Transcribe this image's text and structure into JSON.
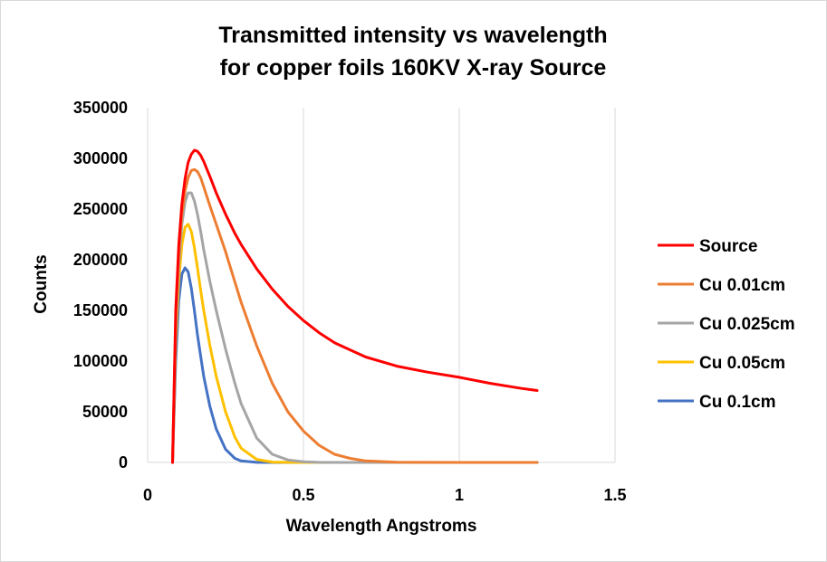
{
  "chart_data": {
    "type": "line",
    "title_lines": [
      "Transmitted intensity vs wavelength",
      "for copper foils 160KV X-ray Source"
    ],
    "xlabel": "Wavelength Angstroms",
    "ylabel": "Counts",
    "xlim": [
      0,
      1.5
    ],
    "ylim": [
      0,
      350000
    ],
    "xticks": [
      0,
      0.5,
      1,
      1.5
    ],
    "xtick_labels": [
      "0",
      "0.5",
      "1",
      "1.5"
    ],
    "yticks": [
      0,
      50000,
      100000,
      150000,
      200000,
      250000,
      300000,
      350000
    ],
    "ytick_labels": [
      "0",
      "50000",
      "100000",
      "150000",
      "200000",
      "250000",
      "300000",
      "350000"
    ],
    "grid": "vertical",
    "legend_position": "right",
    "series": [
      {
        "name": "Source",
        "color": "#ff0000",
        "x": [
          0.08,
          0.09,
          0.1,
          0.11,
          0.12,
          0.13,
          0.14,
          0.15,
          0.16,
          0.17,
          0.18,
          0.2,
          0.22,
          0.25,
          0.28,
          0.3,
          0.35,
          0.4,
          0.45,
          0.5,
          0.55,
          0.6,
          0.7,
          0.8,
          0.9,
          1.0,
          1.1,
          1.2,
          1.25
        ],
        "y": [
          0,
          150000,
          215000,
          255000,
          280000,
          296000,
          304000,
          308000,
          307000,
          303000,
          297000,
          282000,
          266000,
          245000,
          226000,
          215000,
          191000,
          171000,
          154000,
          140000,
          128000,
          118000,
          104000,
          95000,
          89000,
          84000,
          78000,
          73000,
          71000
        ]
      },
      {
        "name": "Cu 0.01cm",
        "color": "#ed7d31",
        "x": [
          0.08,
          0.09,
          0.1,
          0.11,
          0.12,
          0.13,
          0.14,
          0.15,
          0.16,
          0.17,
          0.18,
          0.2,
          0.22,
          0.25,
          0.28,
          0.3,
          0.35,
          0.4,
          0.45,
          0.5,
          0.55,
          0.6,
          0.65,
          0.7,
          0.8,
          0.9,
          1.0,
          1.25
        ],
        "y": [
          0,
          140000,
          205000,
          245000,
          268000,
          281000,
          288000,
          289000,
          287000,
          281000,
          272000,
          253000,
          235000,
          208000,
          178000,
          158000,
          115000,
          78000,
          50000,
          31000,
          17000,
          8000,
          4000,
          1500,
          300,
          50,
          0,
          0
        ]
      },
      {
        "name": "Cu 0.025cm",
        "color": "#a5a5a5",
        "x": [
          0.08,
          0.09,
          0.1,
          0.11,
          0.12,
          0.13,
          0.14,
          0.15,
          0.16,
          0.17,
          0.18,
          0.2,
          0.22,
          0.25,
          0.28,
          0.3,
          0.35,
          0.4,
          0.45,
          0.5,
          0.55,
          0.6,
          0.7,
          0.8,
          1.0,
          1.25
        ],
        "y": [
          0,
          130000,
          195000,
          235000,
          257000,
          266000,
          266000,
          258000,
          245000,
          228000,
          210000,
          178000,
          150000,
          112000,
          78000,
          58000,
          24000,
          8000,
          2500,
          600,
          100,
          0,
          0,
          0,
          0,
          0
        ]
      },
      {
        "name": "Cu 0.05cm",
        "color": "#ffc000",
        "x": [
          0.08,
          0.09,
          0.1,
          0.11,
          0.12,
          0.13,
          0.14,
          0.15,
          0.16,
          0.17,
          0.18,
          0.2,
          0.22,
          0.25,
          0.28,
          0.3,
          0.35,
          0.4,
          0.45,
          0.5,
          0.6,
          0.8,
          1.0,
          1.25
        ],
        "y": [
          0,
          120000,
          180000,
          215000,
          232000,
          235000,
          228000,
          212000,
          192000,
          170000,
          150000,
          115000,
          85000,
          50000,
          25000,
          14000,
          3000,
          400,
          50,
          0,
          0,
          0,
          0,
          0
        ]
      },
      {
        "name": "Cu 0.1cm",
        "color": "#4472c4",
        "x": [
          0.08,
          0.09,
          0.1,
          0.11,
          0.12,
          0.13,
          0.14,
          0.15,
          0.16,
          0.17,
          0.18,
          0.2,
          0.22,
          0.25,
          0.28,
          0.3,
          0.35,
          0.4,
          0.5,
          0.6,
          0.8,
          1.0,
          1.25
        ],
        "y": [
          0,
          100000,
          160000,
          186000,
          192000,
          188000,
          172000,
          150000,
          126000,
          105000,
          85000,
          55000,
          33000,
          13000,
          4000,
          1500,
          100,
          0,
          0,
          0,
          0,
          0,
          0
        ]
      }
    ]
  }
}
